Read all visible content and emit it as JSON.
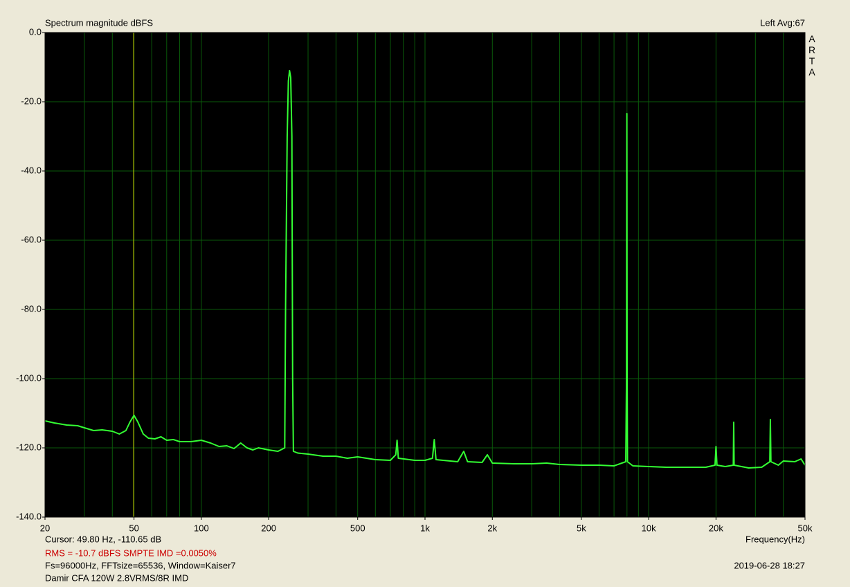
{
  "chart_data": {
    "type": "line",
    "title": "Spectrum magnitude dBFS",
    "channel_label": "Left  Avg:67",
    "brand": "ARTA",
    "xlabel": "Frequency(Hz)",
    "cursor": {
      "label": "Cursor: 49.80 Hz, -110.65 dB",
      "x": 49.8,
      "color": "#c8c800"
    },
    "summary": "RMS =  -10.7 dBFS   SMPTE IMD =0.0050%",
    "settings": "Fs=96000Hz, FFTsize=65536, Window=Kaiser7",
    "note": "Damir CFA 120W 2.8VRMS/8R IMD",
    "timestamp": "2019-06-28  18:27",
    "xscale": "log",
    "grid": true,
    "xlim": [
      20,
      50000
    ],
    "ylim": [
      -140,
      0
    ],
    "xticks": [
      20,
      50,
      100,
      200,
      500,
      {
        "value": 1000,
        "label": "1k"
      },
      {
        "value": 2000,
        "label": "2k"
      },
      {
        "value": 5000,
        "label": "5k"
      },
      {
        "value": 10000,
        "label": "10k"
      },
      {
        "value": 20000,
        "label": "20k"
      },
      {
        "value": 50000,
        "label": "50k"
      }
    ],
    "xgrid": [
      20,
      30,
      40,
      50,
      60,
      70,
      80,
      90,
      100,
      200,
      300,
      400,
      500,
      600,
      700,
      800,
      900,
      1000,
      2000,
      3000,
      4000,
      5000,
      6000,
      7000,
      8000,
      9000,
      10000,
      20000,
      30000,
      40000,
      50000
    ],
    "yticks": [
      {
        "value": 0,
        "label": "0.0"
      },
      {
        "value": -20,
        "label": "-20.0"
      },
      {
        "value": -40,
        "label": "-40.0"
      },
      {
        "value": -60,
        "label": "-60.0"
      },
      {
        "value": -80,
        "label": "-80.0"
      },
      {
        "value": -100,
        "label": "-100.0"
      },
      {
        "value": -120,
        "label": "-120.0"
      },
      {
        "value": -140,
        "label": "-140.0"
      }
    ],
    "x": [
      20,
      22,
      25,
      28,
      30,
      33,
      36,
      40,
      43,
      46,
      48,
      50,
      52,
      55,
      58,
      62,
      66,
      70,
      75,
      80,
      90,
      100,
      110,
      120,
      130,
      140,
      150,
      160,
      170,
      180,
      200,
      220,
      236,
      238,
      242,
      245,
      248,
      251,
      254,
      256,
      258,
      270,
      300,
      350,
      400,
      450,
      500,
      600,
      700,
      740,
      750,
      760,
      900,
      1000,
      1080,
      1100,
      1120,
      1400,
      1490,
      1550,
      1800,
      1900,
      2000,
      2500,
      3000,
      3500,
      4000,
      5000,
      6000,
      7000,
      7900,
      7960,
      7990,
      8010,
      8040,
      8500,
      10000,
      12000,
      15000,
      18000,
      19800,
      20000,
      20200,
      22000,
      23900,
      24000,
      24100,
      28000,
      32000,
      34800,
      35000,
      35200,
      38000,
      40000,
      45000,
      48000,
      50000
    ],
    "series": [
      {
        "name": "Left",
        "color": "#33ff33",
        "values": [
          -112.2,
          -112.8,
          -113.4,
          -113.6,
          -114.2,
          -115,
          -114.8,
          -115.2,
          -116,
          -115,
          -112.5,
          -110.6,
          -112.5,
          -116,
          -117.2,
          -117.4,
          -116.8,
          -117.8,
          -117.6,
          -118.2,
          -118.2,
          -117.8,
          -118.6,
          -119.6,
          -119.4,
          -120.2,
          -118.6,
          -120,
          -120.6,
          -120,
          -120.6,
          -121,
          -120,
          -80,
          -30,
          -14,
          -11,
          -13,
          -30,
          -100,
          -121,
          -121.5,
          -121.8,
          -122.4,
          -122.4,
          -123,
          -122.6,
          -123.4,
          -123.6,
          -122,
          -117.8,
          -123,
          -123.6,
          -123.6,
          -123,
          -117.6,
          -123.4,
          -124,
          -121,
          -124,
          -124.2,
          -122,
          -124.4,
          -124.6,
          -124.6,
          -124.4,
          -124.8,
          -125,
          -125,
          -125.2,
          -124,
          -100,
          -23.4,
          -97,
          -124,
          -125.2,
          -125.4,
          -125.6,
          -125.6,
          -125.6,
          -125,
          -119.6,
          -125,
          -125.4,
          -125,
          -112.6,
          -125,
          -125.8,
          -125.6,
          -124,
          -111.8,
          -124,
          -125,
          -123.8,
          -124,
          -123.2,
          -125
        ]
      }
    ]
  }
}
